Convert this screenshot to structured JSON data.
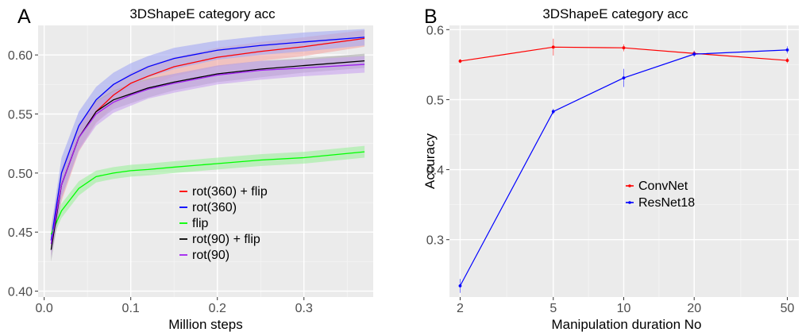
{
  "panels": [
    {
      "letter": "A"
    },
    {
      "letter": "B"
    }
  ],
  "chart_data": [
    {
      "type": "line",
      "title": "3DShapeE category acc",
      "xlabel": "Million steps",
      "ylabel": "",
      "xlim": [
        -0.007,
        0.38
      ],
      "ylim": [
        0.395,
        0.625
      ],
      "xticks": [
        0.0,
        0.1,
        0.2,
        0.3
      ],
      "xtick_labels": [
        "0.0",
        "0.1",
        "0.2",
        "0.3"
      ],
      "yticks": [
        0.4,
        0.45,
        0.5,
        0.55,
        0.6
      ],
      "ytick_labels": [
        "0.40",
        "0.45",
        "0.50",
        "0.55",
        "0.60"
      ],
      "grid": true,
      "legend_position": "center-bottom",
      "shaded_band": true,
      "series": [
        {
          "name": "rot(360) + flip",
          "color": "#ff0000",
          "band_color": "#f4a7a3",
          "x": [
            0.008,
            0.02,
            0.04,
            0.06,
            0.08,
            0.1,
            0.12,
            0.15,
            0.2,
            0.25,
            0.3,
            0.37
          ],
          "y": [
            0.443,
            0.49,
            0.53,
            0.552,
            0.566,
            0.576,
            0.582,
            0.59,
            0.598,
            0.603,
            0.607,
            0.614
          ],
          "err": [
            0.012,
            0.014,
            0.012,
            0.01,
            0.009,
            0.009,
            0.009,
            0.008,
            0.008,
            0.008,
            0.008,
            0.007
          ]
        },
        {
          "name": "rot(360)",
          "color": "#0000ff",
          "band_color": "#a3a9f4",
          "x": [
            0.008,
            0.02,
            0.04,
            0.06,
            0.08,
            0.1,
            0.12,
            0.15,
            0.2,
            0.25,
            0.3,
            0.37
          ],
          "y": [
            0.443,
            0.5,
            0.54,
            0.562,
            0.575,
            0.583,
            0.59,
            0.597,
            0.604,
            0.608,
            0.611,
            0.615
          ],
          "err": [
            0.01,
            0.013,
            0.012,
            0.011,
            0.01,
            0.01,
            0.009,
            0.009,
            0.008,
            0.008,
            0.008,
            0.007
          ]
        },
        {
          "name": "flip",
          "color": "#00ff00",
          "band_color": "#9cf09c",
          "x": [
            0.008,
            0.02,
            0.04,
            0.06,
            0.08,
            0.1,
            0.12,
            0.15,
            0.2,
            0.25,
            0.3,
            0.37
          ],
          "y": [
            0.448,
            0.468,
            0.487,
            0.497,
            0.5,
            0.502,
            0.503,
            0.505,
            0.508,
            0.511,
            0.513,
            0.518
          ],
          "err": [
            0.006,
            0.006,
            0.006,
            0.005,
            0.005,
            0.005,
            0.005,
            0.005,
            0.005,
            0.005,
            0.005,
            0.005
          ]
        },
        {
          "name": "rot(90) + flip",
          "color": "#000000",
          "band_color": "#a9a9a9",
          "x": [
            0.008,
            0.02,
            0.04,
            0.06,
            0.08,
            0.1,
            0.12,
            0.15,
            0.2,
            0.25,
            0.3,
            0.37
          ],
          "y": [
            0.435,
            0.49,
            0.53,
            0.552,
            0.562,
            0.567,
            0.572,
            0.577,
            0.584,
            0.588,
            0.591,
            0.595
          ],
          "err": [
            0.01,
            0.011,
            0.01,
            0.009,
            0.008,
            0.008,
            0.008,
            0.007,
            0.007,
            0.007,
            0.006,
            0.006
          ]
        },
        {
          "name": "rot(90)",
          "color": "#a020f0",
          "band_color": "#caa3f0",
          "x": [
            0.008,
            0.02,
            0.04,
            0.06,
            0.08,
            0.1,
            0.12,
            0.15,
            0.2,
            0.25,
            0.3,
            0.37
          ],
          "y": [
            0.44,
            0.49,
            0.53,
            0.55,
            0.56,
            0.566,
            0.571,
            0.576,
            0.583,
            0.587,
            0.589,
            0.592
          ],
          "err": [
            0.011,
            0.011,
            0.011,
            0.01,
            0.009,
            0.009,
            0.008,
            0.008,
            0.008,
            0.008,
            0.007,
            0.007
          ]
        }
      ]
    },
    {
      "type": "line",
      "title": "3DShapeE category acc",
      "xlabel": "Manipulation duration No",
      "ylabel": "Accuracy",
      "x_scale": "log",
      "xlim": [
        1.8,
        56
      ],
      "ylim": [
        0.218,
        0.606
      ],
      "xticks": [
        2,
        5,
        10,
        20,
        50
      ],
      "xtick_labels": [
        "2",
        "5",
        "10",
        "20",
        "50"
      ],
      "yticks": [
        0.3,
        0.4,
        0.5,
        0.6
      ],
      "ytick_labels": [
        "0.3",
        "0.4",
        "0.5",
        "0.6"
      ],
      "grid": true,
      "legend_position": "center-right",
      "series": [
        {
          "name": "ConvNet",
          "color": "#ff0000",
          "x": [
            2,
            5,
            10,
            20,
            50
          ],
          "y": [
            0.555,
            0.575,
            0.574,
            0.566,
            0.556
          ],
          "err": [
            0.003,
            0.012,
            0.005,
            0.004,
            0.004
          ]
        },
        {
          "name": "ResNet18",
          "color": "#0000ff",
          "x": [
            2,
            5,
            10,
            20,
            50
          ],
          "y": [
            0.234,
            0.483,
            0.531,
            0.565,
            0.571
          ],
          "err": [
            0.01,
            0.004,
            0.013,
            0.004,
            0.005
          ]
        }
      ]
    }
  ]
}
